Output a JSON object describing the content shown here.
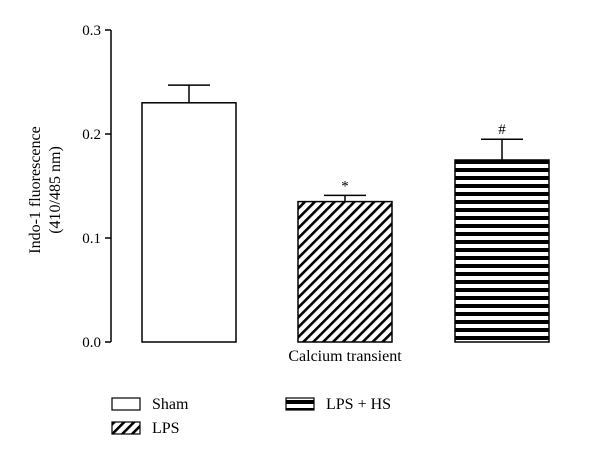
{
  "chart_data": {
    "type": "bar",
    "categories": [
      "Sham",
      "LPS",
      "LPS + HS"
    ],
    "values": [
      0.23,
      0.135,
      0.175
    ],
    "errors": [
      0.017,
      0.006,
      0.02
    ],
    "annotations": [
      "",
      "*",
      "#"
    ],
    "patterns": [
      "none",
      "diagonal",
      "horizontal"
    ],
    "xlabel": "Calcium transient",
    "ylabel_line1": "Indo-1 fluorescence",
    "ylabel_line2": "(410/485 nm)",
    "ylim": [
      0,
      0.3
    ],
    "yticks": [
      0.0,
      0.1,
      0.2,
      0.3
    ],
    "ytick_labels": [
      "0.0",
      "0.1",
      "0.2",
      "0.3"
    ],
    "legend": [
      "Sham",
      "LPS",
      "LPS + HS"
    ],
    "legend_position": "bottom",
    "grid": false
  }
}
